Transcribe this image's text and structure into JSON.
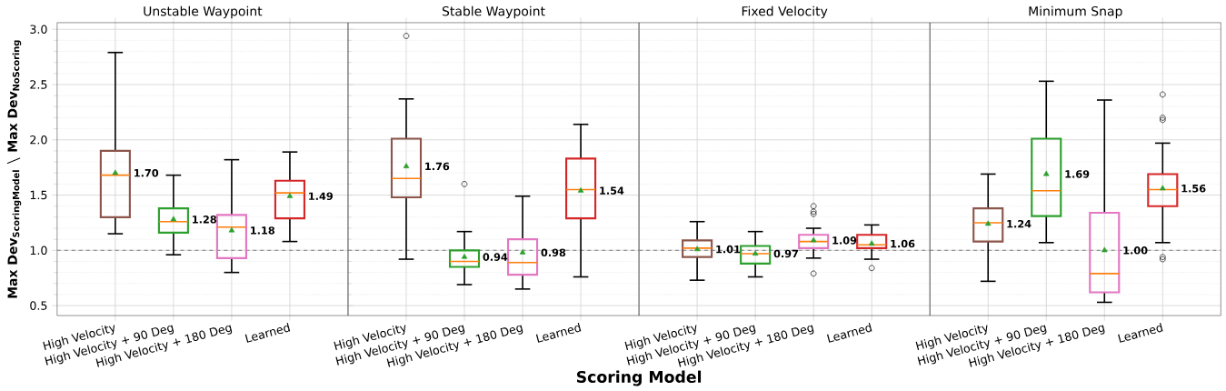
{
  "chart_data": [
    {
      "type": "box",
      "title": "Unstable Waypoint",
      "ylabel": "\\textbf{Max Dev}_{\\textbf{ScoringModel}}\\ \\boldsymbol{\\backslash}\\ \\textbf{Max Dev}_{\\textbf{NoScoring}}",
      "categories": [
        "High Velocity",
        "High Velocity + 90 Deg",
        "High Velocity + 180 Deg",
        "Learned"
      ],
      "colors": [
        "#8c564b",
        "#2ca02c",
        "#e377c2",
        "#d62728"
      ],
      "boxes": [
        {
          "low": 1.15,
          "q1": 1.3,
          "median": 1.68,
          "q3": 1.9,
          "high": 2.79,
          "mean": 1.7
        },
        {
          "low": 0.96,
          "q1": 1.16,
          "median": 1.26,
          "q3": 1.38,
          "high": 1.68,
          "mean": 1.28
        },
        {
          "low": 0.8,
          "q1": 0.93,
          "median": 1.21,
          "q3": 1.32,
          "high": 1.82,
          "mean": 1.18
        },
        {
          "low": 1.08,
          "q1": 1.29,
          "median": 1.52,
          "q3": 1.63,
          "high": 1.89,
          "mean": 1.49
        }
      ],
      "value_labels": [
        "1.70",
        "1.28",
        "1.18",
        "1.49"
      ],
      "ylim": [
        0.41,
        3.06
      ],
      "yticks": [
        {
          "value": 0.5,
          "label": "0.5"
        },
        {
          "value": 1,
          "label": "1.0"
        },
        {
          "value": 1.5,
          "label": "1.5"
        },
        {
          "value": 2,
          "label": "2.0"
        },
        {
          "value": 2.5,
          "label": "2.5"
        },
        {
          "value": 3,
          "label": "3.0"
        }
      ],
      "ref_lines": [
        {
          "axis": "y",
          "value": 1,
          "color": "#808080",
          "line_style": "dashed"
        }
      ],
      "grid": true
    },
    {
      "type": "box",
      "title": "Stable Waypoint",
      "xlabel": "Scoring Model",
      "categories": [
        "High Velocity",
        "High Velocity + 90 Deg",
        "High Velocity + 180 Deg",
        "Learned"
      ],
      "colors": [
        "#8c564b",
        "#2ca02c",
        "#e377c2",
        "#d62728"
      ],
      "boxes": [
        {
          "low": 0.92,
          "q1": 1.48,
          "median": 1.65,
          "q3": 2.01,
          "high": 2.37,
          "mean": 1.76,
          "outliers": [
            2.94
          ]
        },
        {
          "low": 0.69,
          "q1": 0.85,
          "median": 0.9,
          "q3": 1.0,
          "high": 1.17,
          "mean": 0.94,
          "outliers": [
            1.6
          ]
        },
        {
          "low": 0.65,
          "q1": 0.78,
          "median": 0.89,
          "q3": 1.1,
          "high": 1.49,
          "mean": 0.98
        },
        {
          "low": 0.76,
          "q1": 1.29,
          "median": 1.55,
          "q3": 1.83,
          "high": 2.14,
          "mean": 1.54
        }
      ],
      "value_labels": [
        "1.76",
        "0.94",
        "0.98",
        "1.54"
      ],
      "ylim": [
        0.41,
        3.06
      ],
      "yticks": [
        0.5,
        1,
        1.5,
        2,
        2.5,
        3
      ],
      "ref_lines": [
        {
          "axis": "y",
          "value": 1,
          "color": "#808080",
          "line_style": "dashed"
        }
      ],
      "grid": true,
      "tick_labels": "x"
    },
    {
      "type": "box",
      "title": "Fixed Velocity",
      "categories": [
        "High Velocity",
        "High Velocity + 90 Deg",
        "High Velocity + 180 Deg",
        "Learned"
      ],
      "colors": [
        "#8c564b",
        "#2ca02c",
        "#e377c2",
        "#d62728"
      ],
      "boxes": [
        {
          "low": 0.73,
          "q1": 0.94,
          "median": 1.02,
          "q3": 1.09,
          "high": 1.26,
          "mean": 1.01
        },
        {
          "low": 0.76,
          "q1": 0.88,
          "median": 0.97,
          "q3": 1.04,
          "high": 1.17,
          "mean": 0.97
        },
        {
          "low": 0.93,
          "q1": 1.02,
          "median": 1.08,
          "q3": 1.14,
          "high": 1.2,
          "mean": 1.09,
          "outliers": [
            1.4,
            1.35,
            1.33,
            0.79
          ]
        },
        {
          "low": 0.92,
          "q1": 1.02,
          "median": 1.05,
          "q3": 1.14,
          "high": 1.23,
          "mean": 1.06,
          "outliers": [
            0.84
          ]
        }
      ],
      "value_labels": [
        "1.01",
        "0.97",
        "1.09",
        "1.06"
      ],
      "ylim": [
        0.41,
        3.06
      ],
      "yticks": [
        0.5,
        1,
        1.5,
        2,
        2.5,
        3
      ],
      "ref_lines": [
        {
          "axis": "y",
          "value": 1,
          "color": "#808080",
          "line_style": "dashed"
        }
      ],
      "grid": true,
      "tick_labels": "x"
    },
    {
      "type": "box",
      "title": "Minimum Snap",
      "categories": [
        "High Velocity",
        "High Velocity + 90 Deg",
        "High Velocity + 180 Deg",
        "Learned"
      ],
      "colors": [
        "#8c564b",
        "#2ca02c",
        "#e377c2",
        "#d62728"
      ],
      "boxes": [
        {
          "low": 0.72,
          "q1": 1.08,
          "median": 1.25,
          "q3": 1.38,
          "high": 1.69,
          "mean": 1.24
        },
        {
          "low": 1.07,
          "q1": 1.31,
          "median": 1.54,
          "q3": 2.01,
          "high": 2.53,
          "mean": 1.69
        },
        {
          "low": 0.53,
          "q1": 0.62,
          "median": 0.79,
          "q3": 1.34,
          "high": 2.36,
          "mean": 1.0
        },
        {
          "low": 1.07,
          "q1": 1.4,
          "median": 1.55,
          "q3": 1.69,
          "high": 1.97,
          "mean": 1.56,
          "outliers": [
            2.41,
            2.2,
            2.18,
            0.94,
            0.92
          ]
        }
      ],
      "value_labels": [
        "1.24",
        "1.69",
        "1.00",
        "1.56"
      ],
      "ylim": [
        0.41,
        3.06
      ],
      "yticks": [
        0.5,
        1,
        1.5,
        2,
        2.5,
        3
      ],
      "ref_lines": [
        {
          "axis": "y",
          "value": 1,
          "color": "#808080",
          "line_style": "dashed"
        }
      ],
      "grid": true,
      "tick_labels": "x"
    }
  ]
}
